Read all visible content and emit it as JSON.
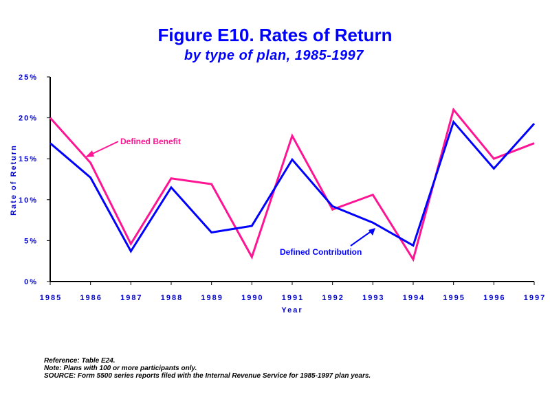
{
  "title": "Figure E10. Rates of Return",
  "subtitle": "by type of plan, 1985-1997",
  "notes": [
    "Reference: Table E24.",
    "Note: Plans with 100 or more participants only.",
    "SOURCE: Form 5500 series reports filed with the Internal Revenue Service for 1985-1997 plan years."
  ],
  "chart_data": {
    "type": "line",
    "title": "Figure E10. Rates of Return",
    "subtitle": "by type of plan, 1985-1997",
    "xlabel": "Year",
    "ylabel": "Rate of Return",
    "x": [
      "1985",
      "1986",
      "1987",
      "1988",
      "1989",
      "1990",
      "1991",
      "1992",
      "1993",
      "1994",
      "1995",
      "1996",
      "1997"
    ],
    "ylim": [
      0,
      25
    ],
    "yticks": [
      0,
      5,
      10,
      15,
      20,
      25
    ],
    "ytick_labels": [
      "0%",
      "5%",
      "10%",
      "15%",
      "20%",
      "25%"
    ],
    "grid": false,
    "series": [
      {
        "name": "Defined Benefit",
        "color": "#ff1493",
        "values": [
          20.0,
          14.5,
          4.6,
          12.6,
          11.9,
          3.0,
          17.8,
          8.8,
          10.6,
          2.7,
          21.0,
          15.0,
          16.9
        ]
      },
      {
        "name": "Defined Contribution",
        "color": "#0000ff",
        "values": [
          16.9,
          12.7,
          3.7,
          11.5,
          6.0,
          6.8,
          14.9,
          9.2,
          7.2,
          4.4,
          19.5,
          13.8,
          19.3
        ]
      }
    ],
    "annotations": [
      "Defined Benefit",
      "Defined Contribution"
    ]
  }
}
